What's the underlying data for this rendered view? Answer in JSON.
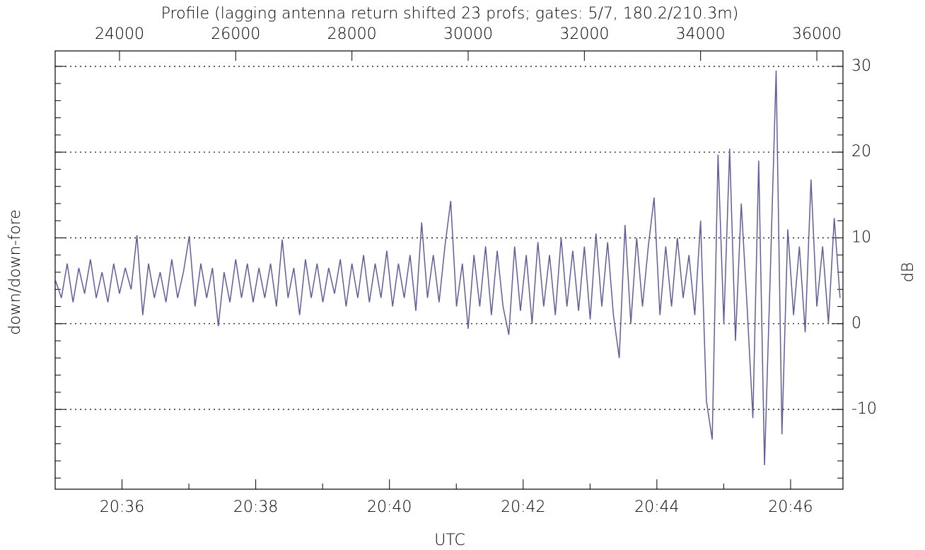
{
  "chart_data": {
    "type": "line",
    "title": "Profile (lagging antenna return shifted 23 profs; gates: 5/7, 180.2/210.3m)",
    "y_label": "down/down-fore",
    "y2_label": "dB",
    "x2_label": "UTC",
    "xlim": [
      22893,
      36450
    ],
    "xticks": [
      24000,
      26000,
      28000,
      30000,
      32000,
      34000,
      36000
    ],
    "x2lim": [
      74100,
      74807
    ],
    "x2ticks": [
      {
        "value": 74160,
        "label": "20:36"
      },
      {
        "value": 74280,
        "label": "20:38"
      },
      {
        "value": 74400,
        "label": "20:40"
      },
      {
        "value": 74520,
        "label": "20:42"
      },
      {
        "value": 74640,
        "label": "20:44"
      },
      {
        "value": 74760,
        "label": "20:46"
      }
    ],
    "ylim": [
      -19.3,
      31.8
    ],
    "yticks": [
      -10,
      0,
      10,
      20,
      30
    ],
    "grid": true,
    "series": [
      {
        "color": "#5e5e98",
        "x": [
          22900,
          23000,
          23100,
          23200,
          23300,
          23400,
          23500,
          23600,
          23700,
          23800,
          23900,
          24000,
          24100,
          24200,
          24300,
          24400,
          24500,
          24600,
          24700,
          24800,
          24900,
          25000,
          25100,
          25200,
          25300,
          25400,
          25500,
          25600,
          25700,
          25800,
          25900,
          26000,
          26100,
          26200,
          26300,
          26400,
          26500,
          26600,
          26700,
          26800,
          26900,
          27000,
          27100,
          27200,
          27300,
          27400,
          27500,
          27600,
          27700,
          27800,
          27900,
          28000,
          28100,
          28200,
          28300,
          28400,
          28500,
          28600,
          28700,
          28800,
          28900,
          29000,
          29100,
          29200,
          29300,
          29400,
          29500,
          29600,
          29700,
          29800,
          29900,
          30000,
          30100,
          30200,
          30300,
          30400,
          30500,
          30600,
          30700,
          30800,
          30900,
          31000,
          31100,
          31200,
          31300,
          31400,
          31500,
          31600,
          31700,
          31800,
          31900,
          32000,
          32100,
          32200,
          32300,
          32400,
          32500,
          32600,
          32700,
          32800,
          32900,
          33000,
          33100,
          33200,
          33300,
          33400,
          33500,
          33600,
          33700,
          33800,
          33900,
          34000,
          34100,
          34200,
          34300,
          34400,
          34500,
          34600,
          34700,
          34800,
          34900,
          35000,
          35100,
          35200,
          35300,
          35400,
          35500,
          35600,
          35700,
          35800,
          35900,
          36000,
          36100,
          36200,
          36300,
          36400
        ],
        "values": [
          5,
          3,
          7,
          2.5,
          6.5,
          3.5,
          7.5,
          3,
          6,
          2.5,
          7,
          3.5,
          6.5,
          4,
          10.3,
          1,
          7,
          3,
          6,
          2.5,
          7.5,
          3,
          6,
          10.2,
          2,
          7,
          3,
          6.5,
          -0.3,
          6,
          2.5,
          7.5,
          3,
          7,
          2.5,
          6.5,
          3,
          7,
          2,
          9.8,
          3,
          6.5,
          1,
          7.5,
          3,
          7,
          2.5,
          6.5,
          3.5,
          7.5,
          2,
          7,
          3,
          8,
          2.5,
          7,
          3,
          8.5,
          2,
          7,
          3,
          8,
          1.5,
          11.8,
          3,
          8,
          2.5,
          9,
          14.3,
          2,
          7,
          -0.6,
          8,
          2,
          9,
          1,
          8.5,
          2,
          -1.3,
          9,
          1.5,
          8,
          0,
          9.5,
          2,
          8,
          1,
          10,
          2,
          8.5,
          1.5,
          9,
          0.5,
          10.5,
          2,
          9.5,
          1,
          -4,
          11.5,
          0,
          10,
          2,
          9,
          14.7,
          1,
          9,
          2,
          10,
          3,
          8,
          1,
          12,
          -9,
          -13.5,
          19.7,
          0,
          20.4,
          -2,
          14,
          2,
          -11,
          19,
          -16.5,
          6,
          29.5,
          -12.9,
          11,
          1,
          9,
          -1,
          16.8,
          2,
          9,
          0,
          12.3,
          3
        ]
      }
    ]
  }
}
